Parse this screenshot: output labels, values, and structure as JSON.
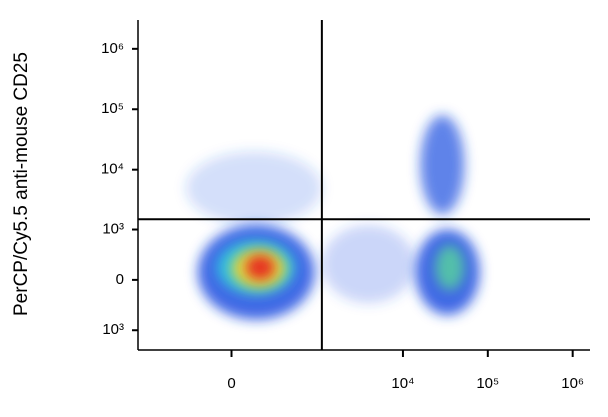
{
  "chart_data": {
    "type": "density",
    "y_label": "PerCP/Cy5.5 anti-mouse CD25",
    "xscale": "asinh",
    "yscale": "asinh",
    "xlim": [
      -1200,
      1600000
    ],
    "ylim": [
      -2000,
      3000000
    ],
    "xticks": [
      0,
      {
        "value": 10000,
        "label": "10⁴"
      },
      {
        "value": 100000,
        "label": "10⁵"
      },
      {
        "value": 1000000,
        "label": "10⁶"
      }
    ],
    "yticks": [
      {
        "value": 1000000,
        "label": "10⁶"
      },
      {
        "value": 100000,
        "label": "10⁵"
      },
      {
        "value": 10000,
        "label": "10⁴"
      },
      {
        "value": 1000,
        "label": "10³"
      },
      0,
      {
        "value": -1000,
        "label": "10³"
      }
    ],
    "gates": {
      "x": 1100,
      "y": 1500
    },
    "layers": [
      {
        "x": [
          -300,
          1100
        ],
        "y": [
          1200,
          20000
        ],
        "color": "#2a5fe8",
        "opacity": 0.2
      },
      {
        "x": [
          1100,
          14000
        ],
        "y": [
          -300,
          1200
        ],
        "color": "#2a5fe8",
        "opacity": 0.25
      },
      {
        "x": [
          -200,
          900
        ],
        "y": [
          -650,
          1200
        ],
        "color": "#1f4fe0",
        "opacity": 0.85
      },
      {
        "x": [
          14000,
          80000
        ],
        "y": [
          -530,
          1000
        ],
        "color": "#1f4fe0",
        "opacity": 0.85
      },
      {
        "x": [
          16000,
          53000
        ],
        "y": [
          1800,
          80000
        ],
        "color": "#1f4fe0",
        "opacity": 0.7
      },
      {
        "x": [
          -80,
          520
        ],
        "y": [
          -180,
          650
        ],
        "color": "#2fc7e0",
        "opacity": 0.9
      },
      {
        "x": [
          24000,
          53000
        ],
        "y": [
          -120,
          530
        ],
        "color": "#55cfa0",
        "opacity": 0.85
      },
      {
        "x": [
          0,
          400
        ],
        "y": [
          -100,
          450
        ],
        "color": "#f0e030",
        "opacity": 0.9
      },
      {
        "x": [
          75,
          280
        ],
        "y": [
          0,
          330
        ],
        "color": "#e8261c",
        "opacity": 0.95
      }
    ]
  }
}
